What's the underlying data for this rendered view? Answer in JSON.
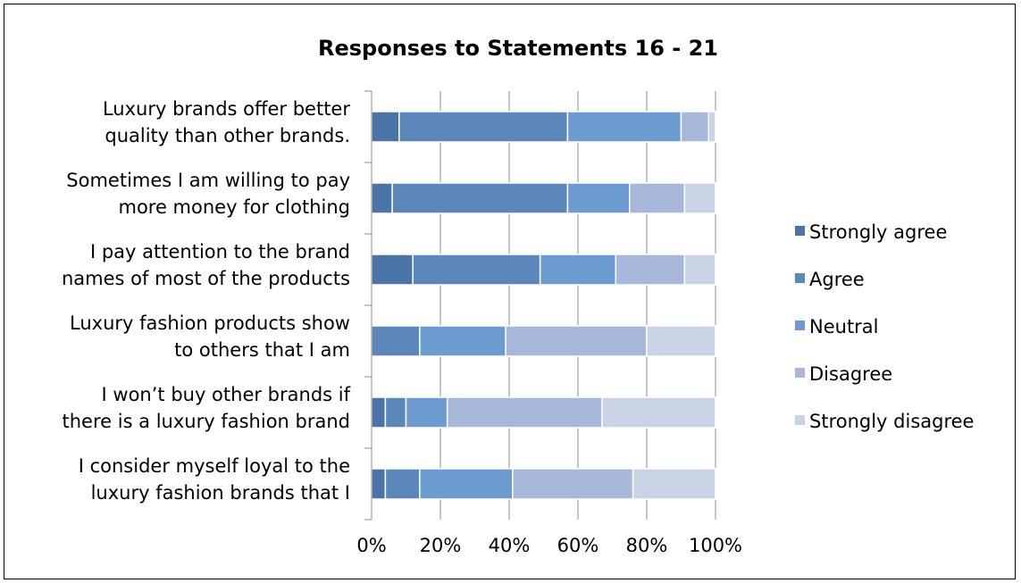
{
  "chart_data": {
    "type": "bar",
    "orientation": "horizontal",
    "stacked": "percent",
    "title": "Responses to Statements 16 - 21",
    "categories": [
      [
        "Luxury brands offer better",
        "quality than other brands."
      ],
      [
        "Sometimes I am willing to pay",
        "more money for clothing"
      ],
      [
        "I pay attention to the brand",
        "names of most of the products"
      ],
      [
        "Luxury fashion products show",
        "to others that I am"
      ],
      [
        "I won’t buy other brands if",
        "there is a luxury fashion brand"
      ],
      [
        "I consider myself loyal to the",
        "luxury fashion brands that I"
      ]
    ],
    "series": [
      {
        "name": "Strongly agree",
        "color": "#4a74a6",
        "values": [
          8,
          6,
          12,
          0,
          4,
          4
        ]
      },
      {
        "name": "Agree",
        "color": "#5b87bb",
        "values": [
          49,
          51,
          37,
          14,
          6,
          10
        ]
      },
      {
        "name": "Neutral",
        "color": "#6b9bd0",
        "values": [
          33,
          18,
          22,
          25,
          12,
          27
        ]
      },
      {
        "name": "Disagree",
        "color": "#a6b7d9",
        "values": [
          8,
          16,
          20,
          41,
          45,
          35
        ]
      },
      {
        "name": "Strongly disagree",
        "color": "#c9d3e6",
        "values": [
          2,
          9,
          9,
          20,
          33,
          24
        ]
      }
    ],
    "xlim": [
      0,
      100
    ],
    "x_ticks": [
      "0%",
      "20%",
      "40%",
      "60%",
      "80%",
      "100%"
    ],
    "grid": true,
    "legend_position": "right"
  }
}
